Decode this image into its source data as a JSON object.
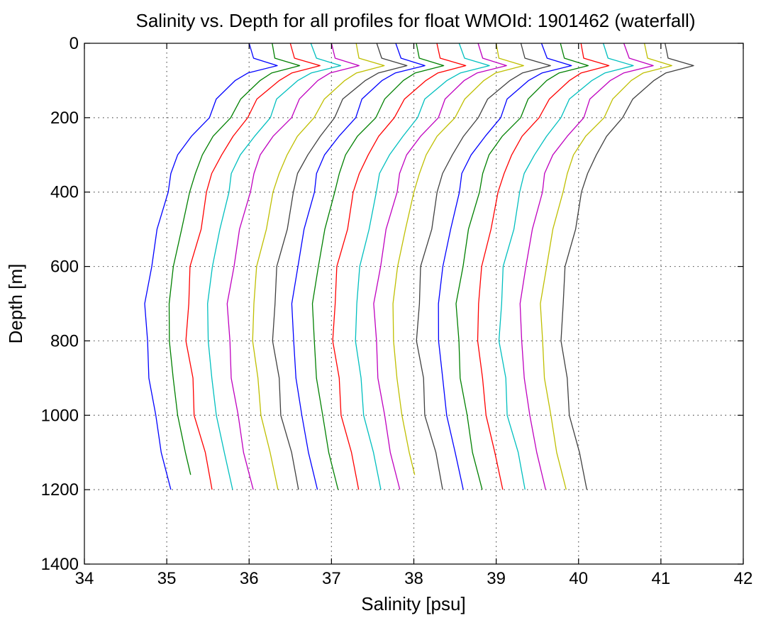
{
  "chart_data": {
    "type": "line",
    "title": "Salinity vs. Depth for all profiles for float WMOId: 1901462 (waterfall)",
    "xlabel": "Salinity [psu]",
    "ylabel": "Depth [m]",
    "xlim": [
      34,
      42
    ],
    "ylim": [
      0,
      1400
    ],
    "y_reversed": true,
    "grid": true,
    "legend": "none",
    "xticks": [
      "34",
      "35",
      "36",
      "37",
      "38",
      "39",
      "40",
      "41",
      "42"
    ],
    "yticks": [
      "0",
      "200",
      "400",
      "600",
      "800",
      "1000",
      "1200",
      "1400"
    ],
    "xtick_values": [
      34,
      35,
      36,
      37,
      38,
      39,
      40,
      41,
      42
    ],
    "ytick_values": [
      0,
      200,
      400,
      600,
      800,
      1000,
      1200,
      1400
    ],
    "depth": [
      0,
      40,
      60,
      80,
      100,
      150,
      200,
      250,
      300,
      350,
      400,
      500,
      600,
      700,
      800,
      900,
      1000,
      1100,
      1200
    ],
    "base_profile": [
      36.0,
      36.05,
      36.35,
      36.0,
      35.85,
      35.6,
      35.5,
      35.3,
      35.15,
      35.05,
      35.0,
      34.9,
      34.8,
      34.75,
      34.75,
      34.8,
      34.85,
      34.95,
      35.05
    ],
    "series": [
      {
        "color": "#0000ff",
        "offset": 0.0,
        "max_depth": 1250
      },
      {
        "color": "#008000",
        "offset": 0.28,
        "max_depth": 1160
      },
      {
        "color": "#ff0000",
        "offset": 0.5,
        "max_depth": 1210
      },
      {
        "color": "#00bfbf",
        "offset": 0.75,
        "max_depth": 1210
      },
      {
        "color": "#bf00bf",
        "offset": 1.0,
        "max_depth": 1210
      },
      {
        "color": "#bfbf00",
        "offset": 1.3,
        "max_depth": 1210
      },
      {
        "color": "#404040",
        "offset": 1.55,
        "max_depth": 1210
      },
      {
        "color": "#0000ff",
        "offset": 1.78,
        "max_depth": 1210
      },
      {
        "color": "#008000",
        "offset": 2.03,
        "max_depth": 1210
      },
      {
        "color": "#ff0000",
        "offset": 2.28,
        "max_depth": 1210
      },
      {
        "color": "#00bfbf",
        "offset": 2.55,
        "max_depth": 1210
      },
      {
        "color": "#bf00bf",
        "offset": 2.78,
        "max_depth": 1210
      },
      {
        "color": "#bfbf00",
        "offset": 3.0,
        "max_depth": 1160
      },
      {
        "color": "#404040",
        "offset": 3.3,
        "max_depth": 1210
      },
      {
        "color": "#0000ff",
        "offset": 3.55,
        "max_depth": 1210
      },
      {
        "color": "#008000",
        "offset": 3.78,
        "max_depth": 1210
      },
      {
        "color": "#ff0000",
        "offset": 4.03,
        "max_depth": 1210
      },
      {
        "color": "#00bfbf",
        "offset": 4.3,
        "max_depth": 1210
      },
      {
        "color": "#bf00bf",
        "offset": 4.55,
        "max_depth": 1210
      },
      {
        "color": "#bfbf00",
        "offset": 4.8,
        "max_depth": 1210
      },
      {
        "color": "#404040",
        "offset": 5.05,
        "max_depth": 1210
      }
    ]
  }
}
